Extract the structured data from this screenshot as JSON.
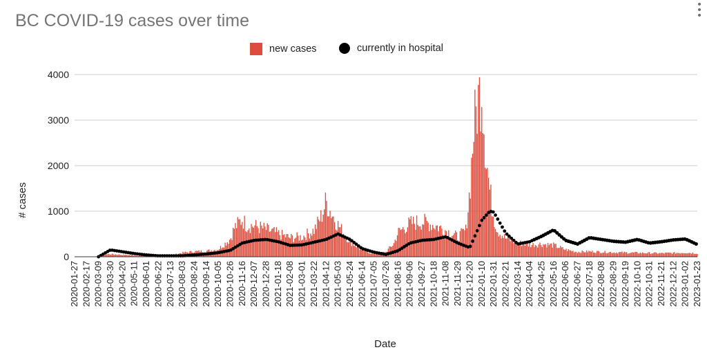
{
  "page": {
    "menu_icon": "more-vert-icon"
  },
  "chart_data": {
    "type": "bar",
    "title": "BC COVID-19 cases over time",
    "xlabel": "Date",
    "ylabel": "# cases",
    "ylim": [
      0,
      4000
    ],
    "yticks": [
      0,
      1000,
      2000,
      3000,
      4000
    ],
    "grid": true,
    "legend_position": "top-center",
    "colors": {
      "new_cases": "#dc4d3d",
      "hospital": "#000000",
      "grid": "#cccccc",
      "axis_text": "#222222",
      "title": "#757575"
    },
    "x_start_date": "2020-01-27",
    "x_end_date": "2023-01-23",
    "categories": [
      "2020-01-27",
      "2020-02-17",
      "2020-03-09",
      "2020-03-30",
      "2020-04-20",
      "2020-05-11",
      "2020-06-01",
      "2020-06-22",
      "2020-07-13",
      "2020-08-03",
      "2020-08-24",
      "2020-09-14",
      "2020-10-05",
      "2020-10-26",
      "2020-11-16",
      "2020-12-07",
      "2020-12-28",
      "2021-01-18",
      "2021-02-08",
      "2021-03-01",
      "2021-03-22",
      "2021-04-12",
      "2021-05-03",
      "2021-05-24",
      "2021-06-14",
      "2021-07-05",
      "2021-07-26",
      "2021-08-16",
      "2021-09-06",
      "2021-09-27",
      "2021-10-18",
      "2021-11-08",
      "2021-11-29",
      "2021-12-20",
      "2022-01-10",
      "2022-01-31",
      "2022-02-21",
      "2022-03-14",
      "2022-04-04",
      "2022-04-25",
      "2022-05-16",
      "2022-06-06",
      "2022-06-27",
      "2022-07-18",
      "2022-08-08",
      "2022-08-29",
      "2022-09-19",
      "2022-10-10",
      "2022-10-31",
      "2022-11-21",
      "2022-12-12",
      "2023-01-02",
      "2023-01-23"
    ],
    "series": [
      {
        "name": "new cases",
        "kind": "bar",
        "x": [
          "2020-01-27",
          "2020-02-17",
          "2020-03-09",
          "2020-03-16",
          "2020-03-30",
          "2020-04-20",
          "2020-05-11",
          "2020-06-01",
          "2020-06-22",
          "2020-07-13",
          "2020-08-03",
          "2020-08-24",
          "2020-09-14",
          "2020-10-05",
          "2020-10-26",
          "2020-11-02",
          "2020-11-16",
          "2020-11-23",
          "2020-12-07",
          "2020-12-28",
          "2021-01-18",
          "2021-02-08",
          "2021-03-01",
          "2021-03-22",
          "2021-04-05",
          "2021-04-12",
          "2021-04-19",
          "2021-05-03",
          "2021-05-24",
          "2021-06-14",
          "2021-07-05",
          "2021-07-26",
          "2021-08-09",
          "2021-08-16",
          "2021-09-06",
          "2021-09-27",
          "2021-10-18",
          "2021-11-08",
          "2021-11-29",
          "2021-12-13",
          "2021-12-20",
          "2021-12-27",
          "2022-01-03",
          "2022-01-10",
          "2022-01-17",
          "2022-01-24",
          "2022-01-31",
          "2022-02-07",
          "2022-02-21",
          "2022-03-14",
          "2022-04-04",
          "2022-04-25",
          "2022-05-16",
          "2022-06-06",
          "2022-06-27",
          "2022-07-18",
          "2022-08-08",
          "2022-08-29",
          "2022-09-19",
          "2022-10-10",
          "2022-10-31",
          "2022-11-21",
          "2022-12-12",
          "2023-01-02",
          "2023-01-23"
        ],
        "values": [
          0,
          0,
          10,
          50,
          60,
          45,
          30,
          20,
          20,
          30,
          90,
          120,
          130,
          170,
          400,
          650,
          850,
          720,
          700,
          620,
          520,
          430,
          450,
          600,
          950,
          1250,
          1050,
          720,
          350,
          150,
          60,
          110,
          300,
          550,
          750,
          800,
          720,
          600,
          450,
          600,
          1500,
          2900,
          3500,
          3900,
          2400,
          1500,
          900,
          600,
          420,
          320,
          270,
          290,
          260,
          160,
          110,
          120,
          110,
          100,
          95,
          90,
          85,
          80,
          85,
          95,
          80
        ]
      },
      {
        "name": "currently in hospital",
        "kind": "dots",
        "x": [
          "2020-03-09",
          "2020-03-30",
          "2020-04-20",
          "2020-05-11",
          "2020-06-01",
          "2020-06-22",
          "2020-07-13",
          "2020-08-03",
          "2020-08-24",
          "2020-09-14",
          "2020-10-05",
          "2020-10-26",
          "2020-11-16",
          "2020-12-07",
          "2020-12-28",
          "2021-01-18",
          "2021-02-08",
          "2021-03-01",
          "2021-03-22",
          "2021-04-12",
          "2021-05-03",
          "2021-05-24",
          "2021-06-14",
          "2021-07-05",
          "2021-07-26",
          "2021-08-16",
          "2021-09-06",
          "2021-09-27",
          "2021-10-18",
          "2021-11-08",
          "2021-11-29",
          "2021-12-20",
          "2022-01-10",
          "2022-01-24",
          "2022-01-31",
          "2022-02-21",
          "2022-03-14",
          "2022-04-04",
          "2022-04-25",
          "2022-05-16",
          "2022-06-06",
          "2022-06-27",
          "2022-07-18",
          "2022-08-08",
          "2022-08-29",
          "2022-09-19",
          "2022-10-10",
          "2022-10-31",
          "2022-11-21",
          "2022-12-12",
          "2023-01-02",
          "2023-01-23"
        ],
        "values": [
          0,
          150,
          110,
          70,
          40,
          20,
          20,
          20,
          40,
          60,
          90,
          140,
          300,
          360,
          380,
          330,
          250,
          260,
          320,
          380,
          500,
          380,
          180,
          100,
          50,
          130,
          300,
          360,
          380,
          440,
          300,
          200,
          800,
          1000,
          980,
          520,
          280,
          330,
          450,
          590,
          360,
          280,
          420,
          380,
          340,
          320,
          380,
          300,
          330,
          370,
          390,
          270
        ]
      }
    ]
  }
}
